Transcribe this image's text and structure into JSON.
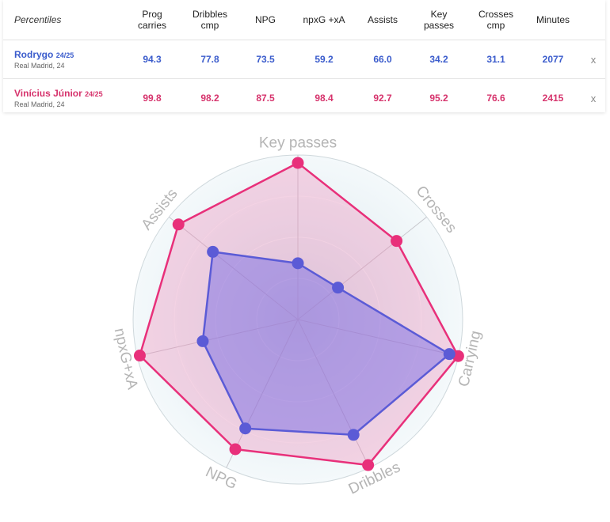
{
  "table": {
    "header_label": "Percentiles",
    "columns": [
      {
        "line1": "Prog",
        "line2": "carries"
      },
      {
        "line1": "Dribbles",
        "line2": "cmp"
      },
      {
        "line1": "NPG",
        "line2": ""
      },
      {
        "line1": "npxG +xA",
        "line2": ""
      },
      {
        "line1": "Assists",
        "line2": ""
      },
      {
        "line1": "Key",
        "line2": "passes"
      },
      {
        "line1": "Crosses",
        "line2": "cmp"
      },
      {
        "line1": "Minutes",
        "line2": ""
      }
    ],
    "rows": [
      {
        "name": "Rodrygo",
        "season": "24/25",
        "subtitle": "Real Madrid, 24",
        "color": "#3b5ccc",
        "values": [
          "94.3",
          "77.8",
          "73.5",
          "59.2",
          "66.0",
          "34.2",
          "31.1",
          "2077"
        ],
        "remove_label": "x"
      },
      {
        "name": "Vinícius Júnior",
        "season": "24/25",
        "subtitle": "Real Madrid, 24",
        "color": "#d6336c",
        "values": [
          "99.8",
          "98.2",
          "87.5",
          "98.4",
          "92.7",
          "95.2",
          "76.6",
          "2415"
        ],
        "remove_label": "x"
      }
    ]
  },
  "chart_data": {
    "type": "radar",
    "axes": [
      "Key passes",
      "Crosses",
      "Carrying",
      "Dribbles",
      "NPG",
      "npxG+xA",
      "Assists"
    ],
    "range": [
      0,
      100
    ],
    "series": [
      {
        "name": "Rodrygo",
        "color": "#5b5bd6",
        "fill": "rgba(110,100,230,0.45)",
        "values": [
          34.2,
          31.1,
          94.3,
          77.8,
          73.5,
          59.2,
          66.0
        ]
      },
      {
        "name": "Vinícius Júnior",
        "color": "#e8307a",
        "fill": "rgba(240,110,170,0.28)",
        "values": [
          95.2,
          76.6,
          99.8,
          98.2,
          87.5,
          98.4,
          92.7
        ]
      }
    ]
  }
}
